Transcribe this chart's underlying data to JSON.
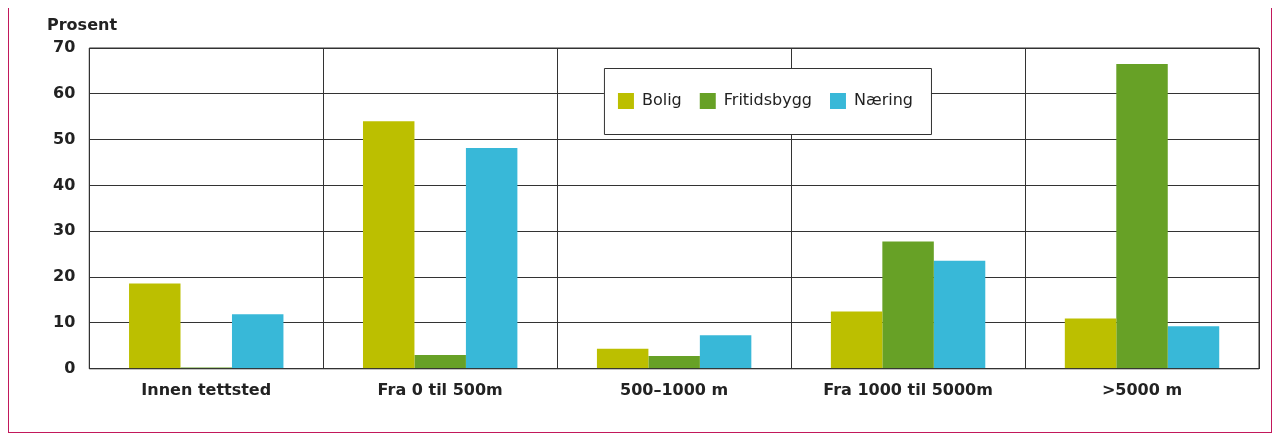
{
  "chart_data": {
    "type": "bar",
    "ylabel": "Prosent",
    "categories": [
      "Innen tettsted",
      "Fra 0 til 500m",
      "500–1000 m",
      "Fra 1000 til 5000m",
      ">5000 m"
    ],
    "series": [
      {
        "name": "Bolig",
        "color": "#bcbf00",
        "values": [
          18.6,
          54,
          4.4,
          12.5,
          11
        ]
      },
      {
        "name": "Fritidsbygg",
        "color": "#67a126",
        "values": [
          0.3,
          3,
          2.8,
          27.8,
          66.5
        ]
      },
      {
        "name": "Næring",
        "color": "#38b8d8",
        "values": [
          11.9,
          48.2,
          7.3,
          23.6,
          9.3
        ]
      }
    ],
    "ylim": [
      0,
      70
    ],
    "yticks": [
      0,
      10,
      20,
      30,
      40,
      50,
      60,
      70
    ],
    "grid": true,
    "legend": "top"
  }
}
